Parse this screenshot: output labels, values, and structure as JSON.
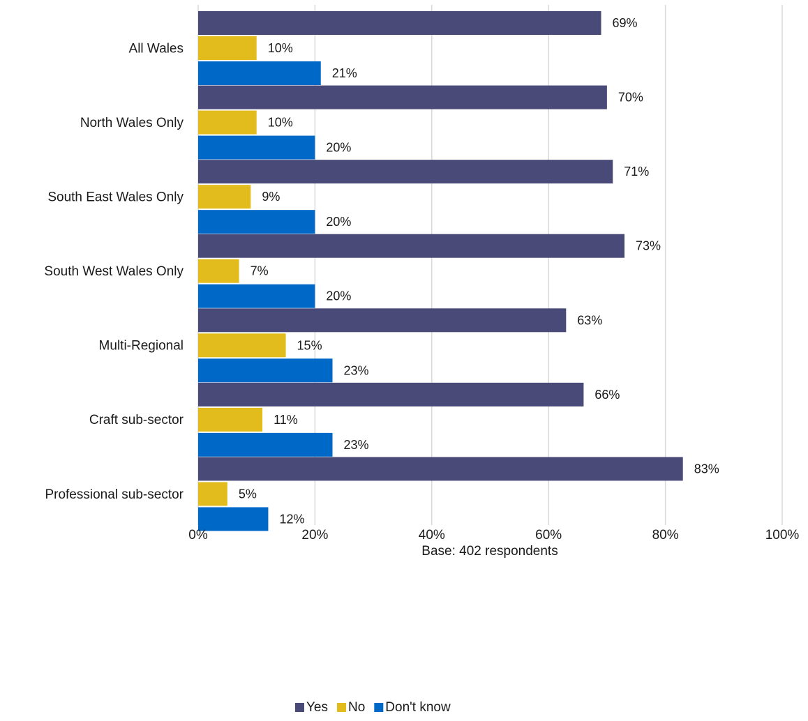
{
  "chart_data": {
    "type": "bar",
    "orientation": "horizontal",
    "categories": [
      "All Wales",
      "North Wales Only",
      "South East Wales Only",
      "South West Wales Only",
      "Multi-Regional",
      "Craft sub-sector",
      "Professional sub-sector"
    ],
    "series": [
      {
        "name": "Yes",
        "color": "#4a4a78",
        "values": [
          69,
          70,
          71,
          73,
          63,
          66,
          83
        ],
        "labels": [
          "69%",
          "70%",
          "71%",
          "73%",
          "63%",
          "66%",
          "83%"
        ]
      },
      {
        "name": "No",
        "color": "#e1bc1c",
        "values": [
          10,
          10,
          9,
          7,
          15,
          11,
          5
        ],
        "labels": [
          "10%",
          "10%",
          "9%",
          "7%",
          "15%",
          "11%",
          "5%"
        ]
      },
      {
        "name": "Don't know",
        "color": "#0069c8",
        "values": [
          21,
          20,
          20,
          20,
          23,
          23,
          12
        ],
        "labels": [
          "21%",
          "20%",
          "20%",
          "20%",
          "23%",
          "23%",
          "12%"
        ]
      }
    ],
    "xlim": [
      0,
      100
    ],
    "xticks": [
      "0%",
      "20%",
      "40%",
      "60%",
      "80%",
      "100%"
    ],
    "xlabel": "Base: 402 respondents",
    "grid": true,
    "legend_position": "bottom"
  }
}
